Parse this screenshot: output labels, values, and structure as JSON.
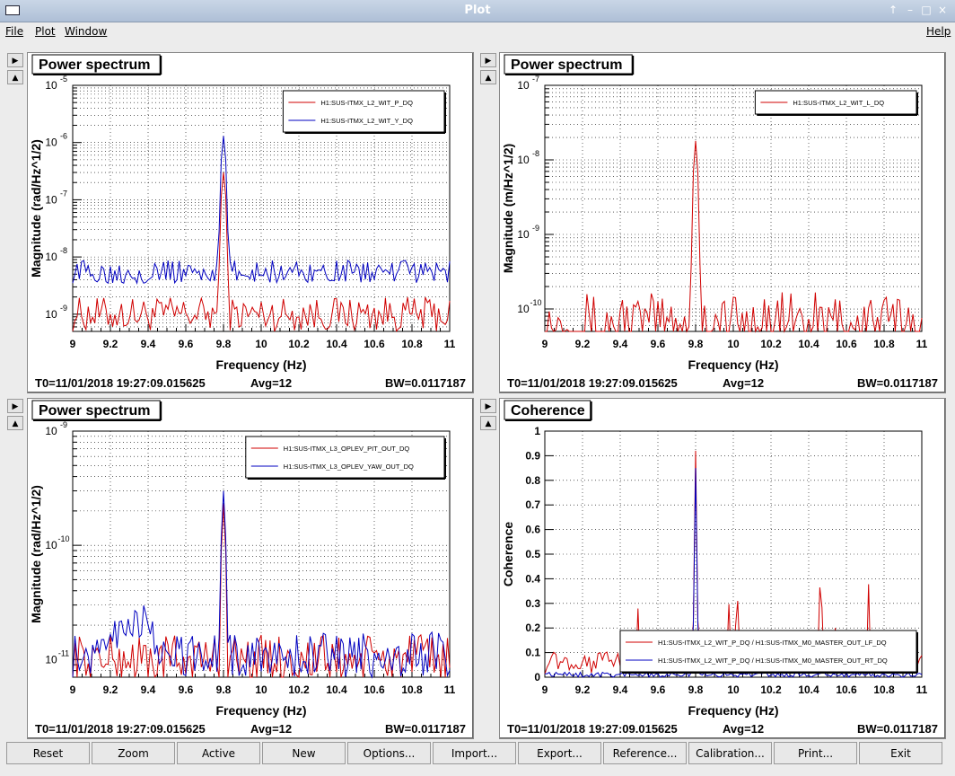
{
  "window": {
    "title": "Plot",
    "controls": [
      "↑",
      "–",
      "□",
      "×"
    ]
  },
  "menu": {
    "file": "File",
    "plot": "Plot",
    "window": "Window",
    "help": "Help"
  },
  "side_buttons": {
    "next": "▶",
    "prev": "▲"
  },
  "buttons": [
    "Reset",
    "Zoom",
    "Active",
    "New",
    "Options...",
    "Import...",
    "Export...",
    "Reference...",
    "Calibration...",
    "Print...",
    "Exit"
  ],
  "chart_data": [
    {
      "type": "line",
      "title": "Power spectrum",
      "xlabel": "Frequency (Hz)",
      "ylabel": "Magnitude (rad/Hz^1/2)",
      "yscale": "log",
      "xlim": [
        9,
        11
      ],
      "ylim": [
        5e-10,
        1e-05
      ],
      "x_ticks": [
        "9",
        "9.2",
        "9.4",
        "9.6",
        "9.8",
        "10",
        "10.2",
        "10.4",
        "10.6",
        "10.8",
        "11"
      ],
      "y_ticks": [
        {
          "exp": "-9",
          "v": 1e-09
        },
        {
          "exp": "-8",
          "v": 1e-08
        },
        {
          "exp": "-7",
          "v": 1e-07
        },
        {
          "exp": "-6",
          "v": 1e-06
        },
        {
          "exp": "-5",
          "v": 1e-05
        }
      ],
      "grid": true,
      "legend": "top-right",
      "footer": {
        "t0": "T0=11/01/2018 19:27:09.015625",
        "avg": "Avg=12",
        "bw": "BW=0.0117187"
      },
      "series": [
        {
          "name": "H1:SUS-ITMX_L2_WIT_P_DQ",
          "color": "#d00000",
          "peak": 3e-07,
          "baseline": 1e-09,
          "noise": 0.3,
          "bumps": [],
          "x": [
            9.0,
            9.2,
            9.4,
            9.6,
            9.8,
            10.0,
            10.2,
            10.4,
            10.6,
            10.8,
            11.0
          ],
          "y": [
            1e-09,
            1e-09,
            1e-09,
            1e-09,
            3e-07,
            1e-09,
            1e-09,
            1e-09,
            1e-09,
            1e-09,
            1e-09
          ]
        },
        {
          "name": "H1:SUS-ITMX_L2_WIT_Y_DQ",
          "color": "#0000c0",
          "peak": 1.3e-06,
          "baseline": 5.5e-09,
          "noise": 0.2,
          "bumps": [],
          "x": [
            9.0,
            9.2,
            9.4,
            9.6,
            9.8,
            10.0,
            10.2,
            10.4,
            10.6,
            10.8,
            11.0
          ],
          "y": [
            5.5e-09,
            5.5e-09,
            5.5e-09,
            5.5e-09,
            1.3e-06,
            5.5e-09,
            5.5e-09,
            5.5e-09,
            5.5e-09,
            5.5e-09,
            5.5e-09
          ]
        }
      ]
    },
    {
      "type": "line",
      "title": "Power spectrum",
      "xlabel": "Frequency (Hz)",
      "ylabel": "Magnitude (m/Hz^1/2)",
      "yscale": "log",
      "xlim": [
        9,
        11
      ],
      "ylim": [
        5e-11,
        1e-07
      ],
      "x_ticks": [
        "9",
        "9.2",
        "9.4",
        "9.6",
        "9.8",
        "10",
        "10.2",
        "10.4",
        "10.6",
        "10.8",
        "11"
      ],
      "y_ticks": [
        {
          "exp": "-10",
          "v": 1e-10
        },
        {
          "exp": "-9",
          "v": 1e-09
        },
        {
          "exp": "-8",
          "v": 1e-08
        },
        {
          "exp": "-7",
          "v": 1e-07
        }
      ],
      "grid": true,
      "legend": "top-right",
      "footer": {
        "t0": "T0=11/01/2018 19:27:09.015625",
        "avg": "Avg=12",
        "bw": "BW=0.0117187"
      },
      "series": [
        {
          "name": "H1:SUS-ITMX_L2_WIT_L_DQ",
          "color": "#d00000",
          "peak": 1.8e-08,
          "baseline": 6e-11,
          "noise": 0.45,
          "bumps": [],
          "dotted": true,
          "x": [
            9.0,
            9.2,
            9.4,
            9.6,
            9.8,
            10.0,
            10.2,
            10.4,
            10.6,
            10.8,
            11.0
          ],
          "y": [
            6e-11,
            6e-11,
            6e-11,
            6e-11,
            1.8e-08,
            6e-11,
            6e-11,
            6e-11,
            6e-11,
            6e-11,
            6e-11
          ]
        }
      ]
    },
    {
      "type": "line",
      "title": "Power spectrum",
      "xlabel": "Frequency (Hz)",
      "ylabel": "Magnitude (rad/Hz^1/2)",
      "yscale": "log",
      "xlim": [
        9,
        11
      ],
      "ylim": [
        7e-12,
        1e-09
      ],
      "x_ticks": [
        "9",
        "9.2",
        "9.4",
        "9.6",
        "9.8",
        "10",
        "10.2",
        "10.4",
        "10.6",
        "10.8",
        "11"
      ],
      "y_ticks": [
        {
          "exp": "-11",
          "v": 1e-11
        },
        {
          "exp": "-10",
          "v": 1e-10
        },
        {
          "exp": "-9",
          "v": 1e-09
        }
      ],
      "grid": true,
      "legend": "top-right",
      "footer": {
        "t0": "T0=11/01/2018 19:27:09.015625",
        "avg": "Avg=12",
        "bw": "BW=0.0117187"
      },
      "series": [
        {
          "name": "H1:SUS-ITMX_L3_OPLEV_PIT_OUT_DQ",
          "color": "#d00000",
          "peak": 2.3e-10,
          "baseline": 1e-11,
          "noise": 0.22,
          "bumps": [],
          "x": [
            9.0,
            9.2,
            9.4,
            9.6,
            9.8,
            10.0,
            10.2,
            10.4,
            10.6,
            10.8,
            11.0
          ],
          "y": [
            1e-11,
            1e-11,
            1e-11,
            1e-11,
            2.3e-10,
            1e-11,
            1e-11,
            1e-11,
            1e-11,
            1e-11,
            1e-11
          ]
        },
        {
          "name": "H1:SUS-ITMX_L3_OPLEV_YAW_OUT_DQ",
          "color": "#0000c0",
          "peak": 3e-10,
          "baseline": 1.1e-11,
          "noise": 0.2,
          "bumps": [
            [
              9.35,
              2.2e-11
            ],
            [
              9.2,
              1.6e-11
            ]
          ],
          "x": [
            9.0,
            9.2,
            9.35,
            9.6,
            9.8,
            10.0,
            10.2,
            10.4,
            10.6,
            10.8,
            11.0
          ],
          "y": [
            1.2e-11,
            1.6e-11,
            2.2e-11,
            1.1e-11,
            3e-10,
            1.1e-11,
            1.1e-11,
            1.1e-11,
            1.1e-11,
            1.1e-11,
            1.1e-11
          ]
        }
      ]
    },
    {
      "type": "line",
      "title": "Coherence",
      "xlabel": "Frequency (Hz)",
      "ylabel": "Coherence",
      "yscale": "linear",
      "xlim": [
        9,
        11
      ],
      "ylim": [
        0,
        1
      ],
      "x_ticks": [
        "9",
        "9.2",
        "9.4",
        "9.6",
        "9.8",
        "10",
        "10.2",
        "10.4",
        "10.6",
        "10.8",
        "11"
      ],
      "y_ticks": [
        {
          "t": "0",
          "v": 0
        },
        {
          "t": "0.1",
          "v": 0.1
        },
        {
          "t": "0.2",
          "v": 0.2
        },
        {
          "t": "0.3",
          "v": 0.3
        },
        {
          "t": "0.4",
          "v": 0.4
        },
        {
          "t": "0.5",
          "v": 0.5
        },
        {
          "t": "0.6",
          "v": 0.6
        },
        {
          "t": "0.7",
          "v": 0.7
        },
        {
          "t": "0.8",
          "v": 0.8
        },
        {
          "t": "0.9",
          "v": 0.9
        },
        {
          "t": "1",
          "v": 1
        }
      ],
      "grid": true,
      "legend": "bottom-right",
      "footer": {
        "t0": "T0=11/01/2018 19:27:09.015625",
        "avg": "Avg=12",
        "bw": "BW=0.0117187"
      },
      "series": [
        {
          "name": "H1:SUS-ITMX_L2_WIT_P_DQ / H1:SUS-ITMX_M0_MASTER_OUT_LF_DQ",
          "color": "#d00000",
          "peak": 0.92,
          "baseline": 0.06,
          "noise": 0.1,
          "bumps": [],
          "x": [
            9.0,
            9.2,
            9.4,
            9.6,
            9.8,
            10.0,
            10.2,
            10.4,
            10.6,
            10.8,
            11.0
          ],
          "y": [
            0.06,
            0.06,
            0.06,
            0.06,
            0.92,
            0.06,
            0.06,
            0.06,
            0.06,
            0.06,
            0.06
          ]
        },
        {
          "name": "H1:SUS-ITMX_L2_WIT_P_DQ / H1:SUS-ITMX_M0_MASTER_OUT_RT_DQ",
          "color": "#0000c0",
          "peak": 0.85,
          "baseline": 0.02,
          "noise": 0.03,
          "bumps": [],
          "x": [
            9.0,
            9.2,
            9.4,
            9.6,
            9.8,
            10.0,
            10.2,
            10.4,
            10.6,
            10.8,
            11.0
          ],
          "y": [
            0.02,
            0.02,
            0.02,
            0.02,
            0.85,
            0.02,
            0.02,
            0.02,
            0.02,
            0.02,
            0.02
          ]
        }
      ]
    }
  ]
}
